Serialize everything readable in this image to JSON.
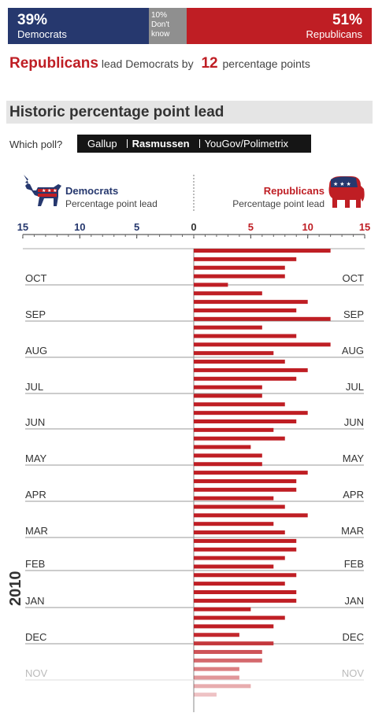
{
  "summary": {
    "democrats": {
      "pct": "39%",
      "label": "Democrats"
    },
    "dont_know": {
      "pct": "10%",
      "label_line1": "Don't",
      "label_line2": "know"
    },
    "republicans": {
      "pct": "51%",
      "label": "Republicans"
    },
    "colors": {
      "democrats": "#26386e",
      "dont_know": "#8f8f8f",
      "republicans": "#bf1e24"
    }
  },
  "headline": {
    "party": "Republicans",
    "mid": "lead Democrats by",
    "value": "12",
    "tail": "percentage points"
  },
  "section_title": "Historic percentage point lead",
  "poll_selector": {
    "label": "Which poll?",
    "options": [
      "Gallup",
      "Rasmussen",
      "YouGov/Polimetrix"
    ],
    "selected": "Rasmussen"
  },
  "legend": {
    "democrats": {
      "title": "Democrats",
      "subtitle": "Percentage point lead",
      "icon": "donkey-icon"
    },
    "republicans": {
      "title": "Republicans",
      "subtitle": "Percentage point lead",
      "icon": "elephant-icon"
    }
  },
  "chart_data": {
    "type": "bar",
    "orientation": "horizontal-diverging",
    "year_label": "2010",
    "axis": {
      "democrat_ticks": [
        "15",
        "10",
        "5"
      ],
      "center_tick": "0",
      "republican_ticks": [
        "5",
        "10",
        "15"
      ],
      "range": [
        -15,
        15
      ]
    },
    "months": [
      "OCT",
      "SEP",
      "AUG",
      "JUL",
      "JUN",
      "MAY",
      "APR",
      "MAR",
      "FEB",
      "JAN",
      "DEC",
      "NOV"
    ],
    "faded_months": [
      "NOV"
    ],
    "series": [
      {
        "party": "Republicans",
        "color": "#bf1e24",
        "values": [
          12,
          9,
          8,
          8,
          3,
          6,
          10,
          9,
          12,
          6,
          9,
          12,
          7,
          8,
          10,
          9,
          6,
          6,
          8,
          10,
          9,
          7,
          8,
          5,
          6,
          6,
          10,
          9,
          9,
          7,
          8,
          10,
          7,
          8,
          9,
          9,
          8,
          7,
          9,
          8,
          9,
          9,
          5,
          8,
          7,
          4,
          7,
          6,
          6,
          4,
          4,
          5,
          2
        ]
      }
    ]
  }
}
